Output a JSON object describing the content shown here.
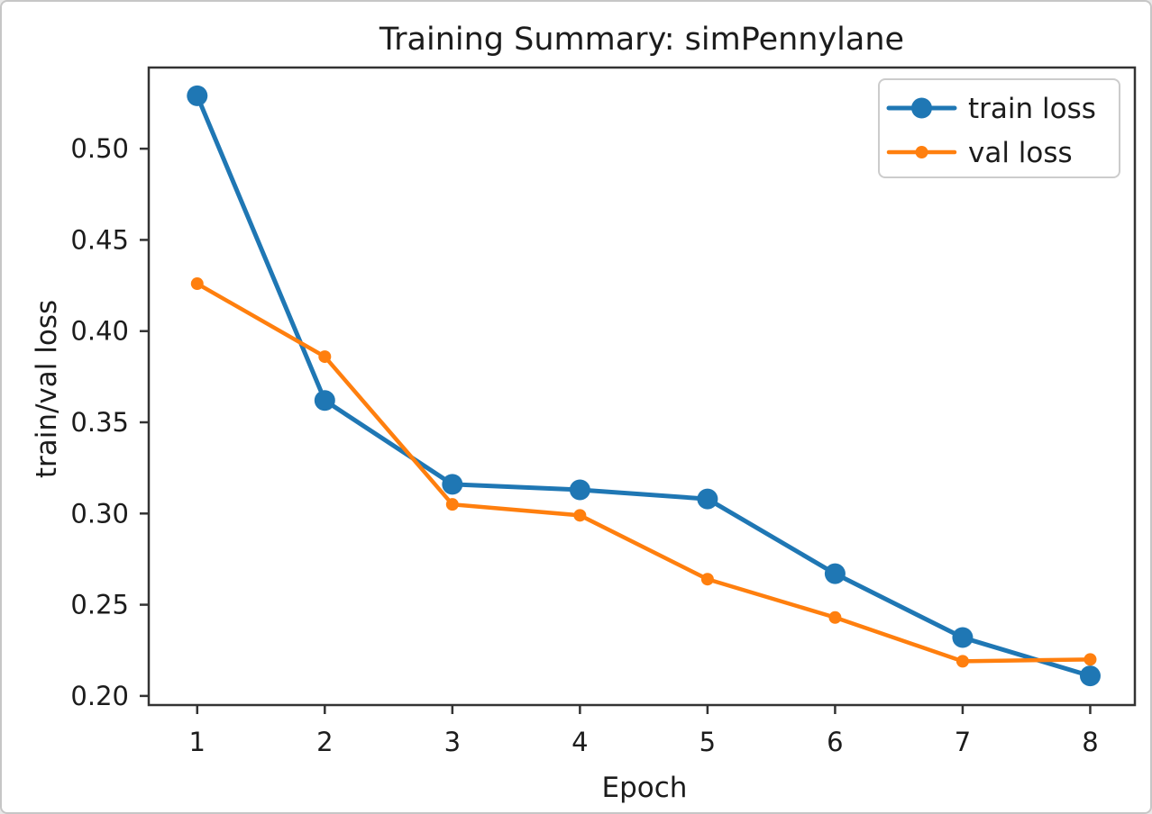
{
  "window": {
    "background": "#ffffff",
    "frame_border_color": "#c6c6c6"
  },
  "chart_data": {
    "type": "line",
    "title": "Training Summary: simPennylane",
    "xlabel": "Epoch",
    "ylabel": "train/val loss",
    "x": [
      1,
      2,
      3,
      4,
      5,
      6,
      7,
      8
    ],
    "series": [
      {
        "name": "train loss",
        "color": "#1f77b4",
        "marker": "circle",
        "marker_radius": 11.5,
        "line_width": 5,
        "values": [
          0.529,
          0.362,
          0.316,
          0.313,
          0.308,
          0.267,
          0.232,
          0.211
        ]
      },
      {
        "name": "val loss",
        "color": "#ff7f0e",
        "marker": "circle",
        "marker_radius": 7,
        "line_width": 4.5,
        "values": [
          0.426,
          0.386,
          0.305,
          0.299,
          0.264,
          0.243,
          0.219,
          0.22
        ]
      }
    ],
    "xlim": [
      0.62,
      8.35
    ],
    "ylim": [
      0.195,
      0.5445
    ],
    "xticks": [
      1,
      2,
      3,
      4,
      5,
      6,
      7,
      8
    ],
    "xtick_labels": [
      "1",
      "2",
      "3",
      "4",
      "5",
      "6",
      "7",
      "8"
    ],
    "yticks": [
      0.2,
      0.25,
      0.3,
      0.35,
      0.4,
      0.45,
      0.5
    ],
    "ytick_labels": [
      "0.20",
      "0.25",
      "0.30",
      "0.35",
      "0.40",
      "0.45",
      "0.50"
    ],
    "grid": false,
    "legend": {
      "position": "upper right",
      "items": [
        "train loss",
        "val loss"
      ]
    },
    "axis_color": "#333333",
    "text_color": "#1c1c1c"
  }
}
